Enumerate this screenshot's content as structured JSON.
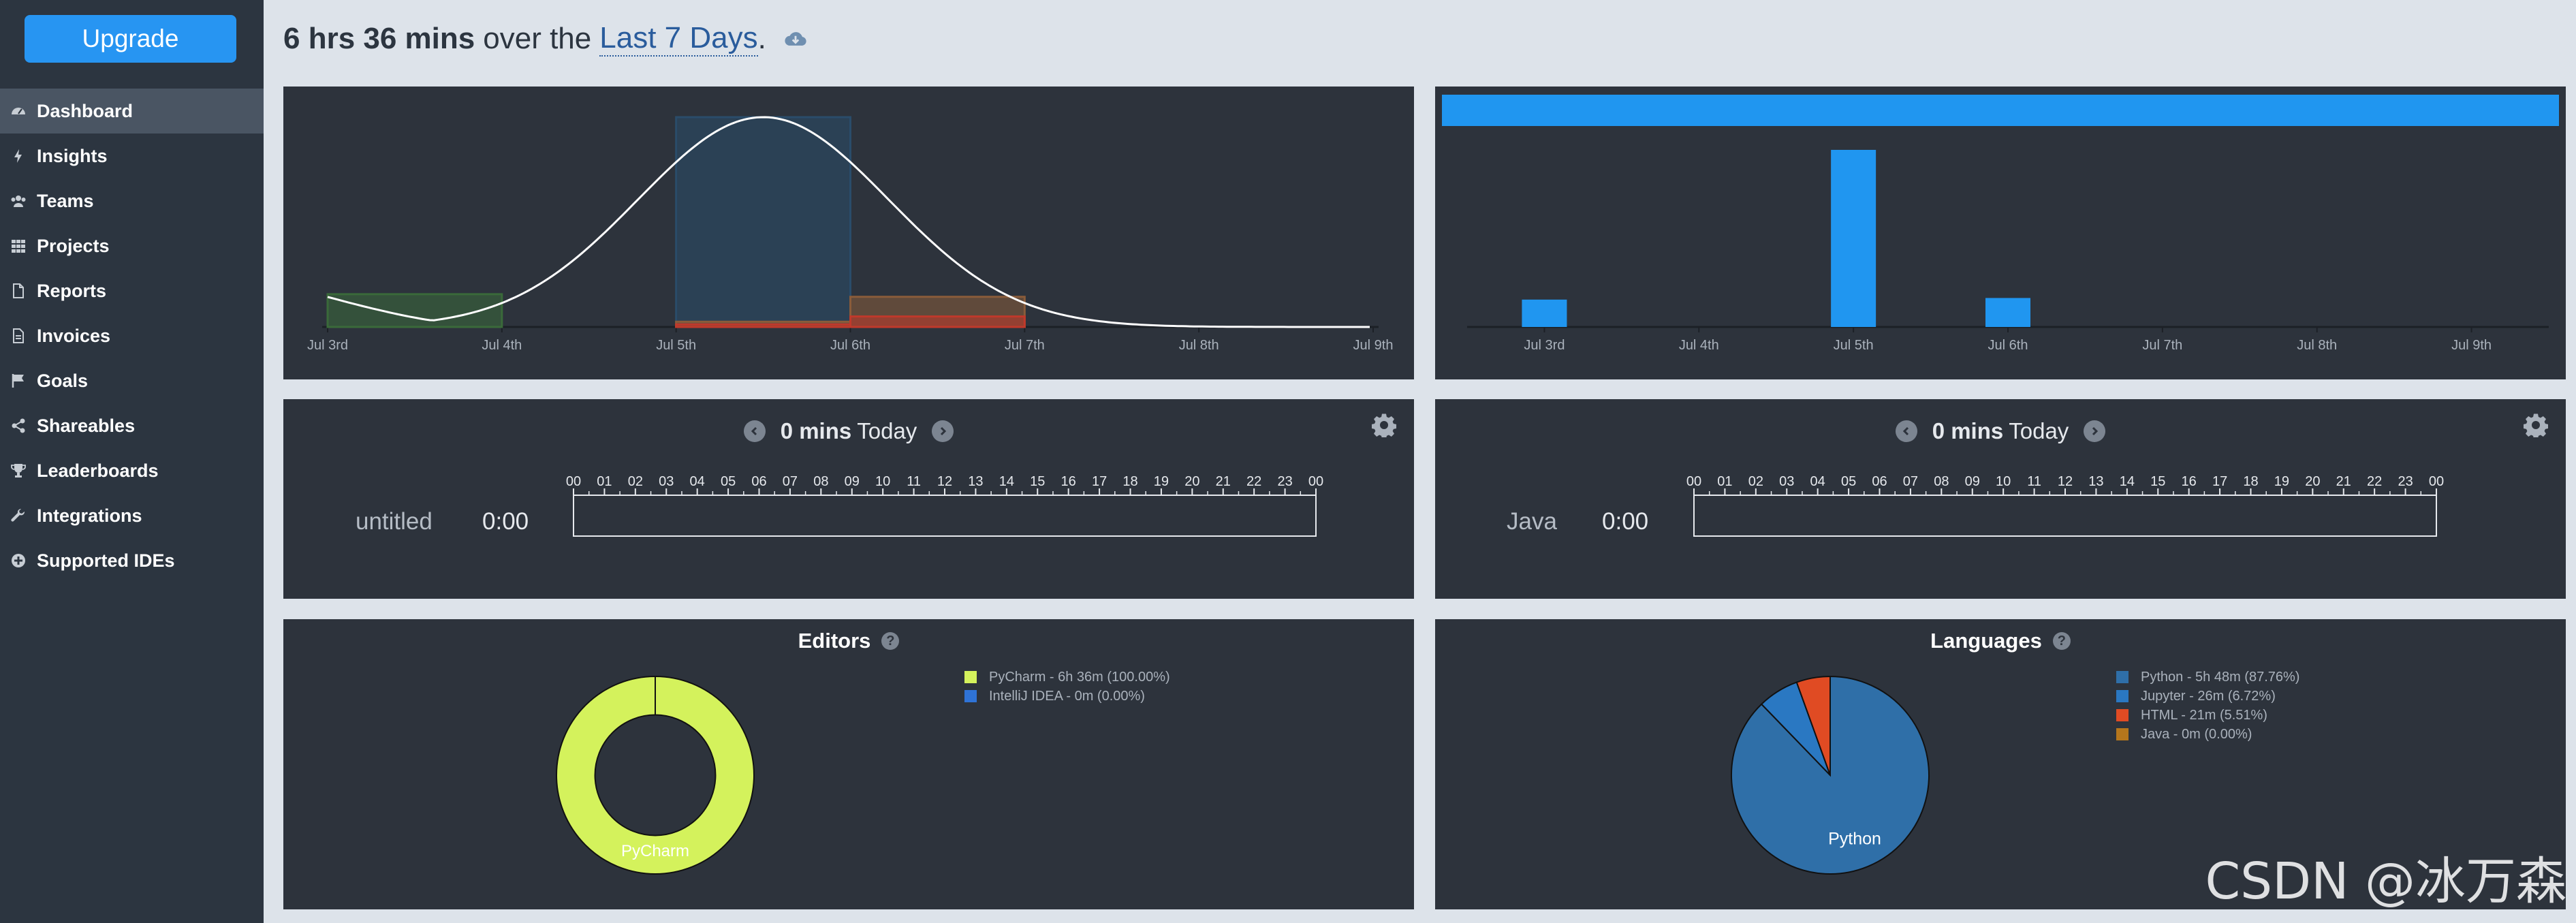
{
  "sidebar": {
    "upgrade_label": "Upgrade",
    "items": [
      {
        "label": "Dashboard",
        "icon": "dashboard-icon",
        "active": true
      },
      {
        "label": "Insights",
        "icon": "bolt-icon"
      },
      {
        "label": "Teams",
        "icon": "users-icon"
      },
      {
        "label": "Projects",
        "icon": "grid-icon"
      },
      {
        "label": "Reports",
        "icon": "document-icon"
      },
      {
        "label": "Invoices",
        "icon": "invoice-icon"
      },
      {
        "label": "Goals",
        "icon": "flag-icon"
      },
      {
        "label": "Shareables",
        "icon": "share-icon"
      },
      {
        "label": "Leaderboards",
        "icon": "trophy-icon"
      },
      {
        "label": "Integrations",
        "icon": "wrench-icon"
      },
      {
        "label": "Supported IDEs",
        "icon": "plus-circle-icon"
      }
    ]
  },
  "header": {
    "total": "6 hrs 36 mins",
    "over_the": "over the",
    "range": "Last 7 Days",
    "period": ".",
    "icon": "cloud-download-icon"
  },
  "colors": {
    "accent": "#2795f2",
    "panel_bg": "#2d333c",
    "sidebar_bg": "#2c3540",
    "page_bg": "#dde3ea",
    "editor_pycharm": "#d4f25c",
    "editor_intellij": "#2f73d6",
    "lang_python": "#2f6fa8",
    "lang_jupyter": "#2a78c2",
    "lang_html": "#e04b23",
    "lang_java": "#b5761c"
  },
  "chart_data": [
    {
      "type": "area",
      "categories": [
        "Jul 3rd",
        "Jul 4th",
        "Jul 5th",
        "Jul 6th",
        "Jul 7th",
        "Jul 8th",
        "Jul 9th"
      ],
      "series": [
        {
          "name": "",
          "color": "#3a6a3a",
          "values": [
            0.25,
            0,
            0,
            0,
            0,
            0,
            0
          ]
        },
        {
          "name": "",
          "color": "#2a4c6a",
          "values": [
            0,
            0,
            1.6,
            0,
            0,
            0,
            0
          ]
        },
        {
          "name": "",
          "color": "#8a5c3a",
          "values": [
            0,
            0,
            0.04,
            0.23,
            0,
            0,
            0
          ]
        },
        {
          "name": "",
          "color": "#c0392b",
          "values": [
            0,
            0,
            0.02,
            0.08,
            0,
            0,
            0
          ]
        }
      ],
      "curve": "normal-distribution"
    },
    {
      "type": "bar",
      "categories": [
        "Jul 3rd",
        "Jul 4th",
        "Jul 5th",
        "Jul 6th",
        "Jul 7th",
        "Jul 8th",
        "Jul 9th"
      ],
      "values": [
        0.17,
        0,
        1.1,
        0.18,
        0,
        0,
        0
      ],
      "series_color": "#2096f0",
      "top_bar": 1.0
    },
    {
      "type": "pie",
      "title": "Editors",
      "donut": true,
      "slices": [
        {
          "label": "PyCharm - 6h 36m (100.00%)",
          "name": "PyCharm",
          "value": 100.0,
          "color": "#d4f25c"
        },
        {
          "label": "IntelliJ IDEA - 0m (0.00%)",
          "name": "IntelliJ IDEA",
          "value": 0.0,
          "color": "#2f73d6"
        }
      ],
      "center_label": "PyCharm"
    },
    {
      "type": "pie",
      "title": "Languages",
      "donut": false,
      "slices": [
        {
          "label": "Python - 5h 48m (87.76%)",
          "name": "Python",
          "value": 87.76,
          "color": "#2f6fa8"
        },
        {
          "label": "Jupyter - 26m (6.72%)",
          "name": "Jupyter",
          "value": 6.72,
          "color": "#2a78c2"
        },
        {
          "label": "HTML - 21m (5.51%)",
          "name": "HTML",
          "value": 5.51,
          "color": "#e04b23"
        },
        {
          "label": "Java - 0m (0.00%)",
          "name": "Java",
          "value": 0.0,
          "color": "#b5761c"
        }
      ],
      "center_label": "Python"
    }
  ],
  "timelines": [
    {
      "mins": "0 mins",
      "today": "Today",
      "label": "untitled",
      "time": "0:00",
      "hours": [
        "00",
        "01",
        "02",
        "03",
        "04",
        "05",
        "06",
        "07",
        "08",
        "09",
        "10",
        "11",
        "12",
        "13",
        "14",
        "15",
        "16",
        "17",
        "18",
        "19",
        "20",
        "21",
        "22",
        "23",
        "00"
      ]
    },
    {
      "mins": "0 mins",
      "today": "Today",
      "label": "Java",
      "time": "0:00",
      "hours": [
        "00",
        "01",
        "02",
        "03",
        "04",
        "05",
        "06",
        "07",
        "08",
        "09",
        "10",
        "11",
        "12",
        "13",
        "14",
        "15",
        "16",
        "17",
        "18",
        "19",
        "20",
        "21",
        "22",
        "23",
        "00"
      ]
    }
  ],
  "watermark": "CSDN @冰万森"
}
